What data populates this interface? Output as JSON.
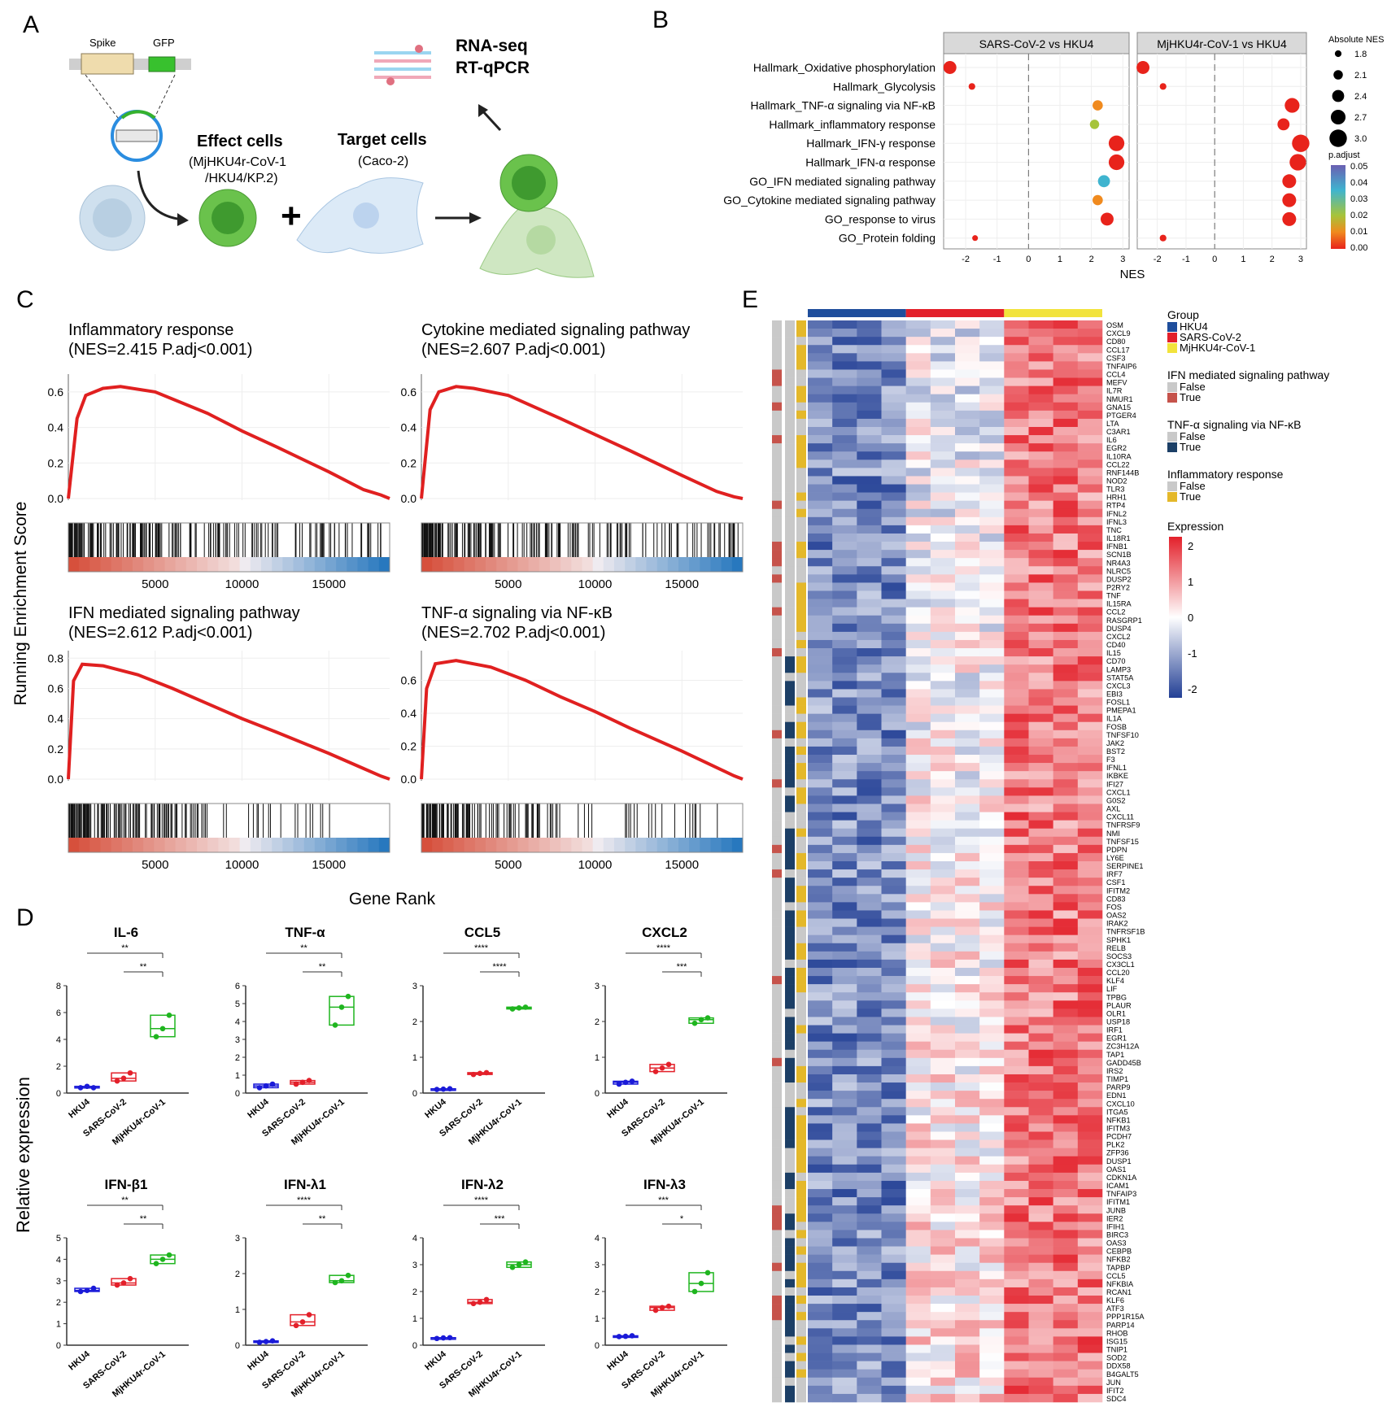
{
  "panel_labels": {
    "a": "A",
    "b": "B",
    "c": "C",
    "d": "D",
    "e": "E"
  },
  "panelA": {
    "spike": "Spike",
    "gfp": "GFP",
    "rnaseq": "RNA-seq",
    "rtqpcr": "RT-qPCR",
    "effect_title": "Effect cells",
    "effect_sub1": "(MjHKU4r-CoV-1",
    "effect_sub2": "/HKU4/KP.2)",
    "target_title": "Target cells",
    "target_sub": "(Caco-2)",
    "plus": "+"
  },
  "panelB": {
    "facet_titles": [
      "SARS-CoV-2 vs HKU4",
      "MjHKU4r-CoV-1 vs HKU4"
    ],
    "xlabel": "NES",
    "xticks": [
      -2,
      -1,
      0,
      1,
      2,
      3
    ],
    "size_legend_title": "Absolute NES",
    "size_legend_values": [
      "1.8",
      "2.1",
      "2.4",
      "2.7",
      "3.0"
    ],
    "color_legend_title": "p.adjust",
    "color_legend_values": [
      "0.05",
      "0.04",
      "0.03",
      "0.02",
      "0.01",
      "0.00"
    ],
    "colors": {
      "low": "#e8231b",
      "mid1": "#f08a1e",
      "mid2": "#a6c43a",
      "mid3": "#3fb4cf",
      "high": "#6a5fb2"
    }
  },
  "panelC": {
    "ylabel": "Running Enrichment Score",
    "xlabel": "Gene Rank",
    "xticks": [
      "5000",
      "10000",
      "15000"
    ],
    "panels": [
      {
        "title": "Inflammatory response",
        "stats": "(NES=2.415  P.adj<0.001)",
        "yticks": [
          "0.0",
          "0.2",
          "0.4",
          "0.6"
        ]
      },
      {
        "title": "Cytokine mediated signaling pathway",
        "stats": "(NES=2.607  P.adj<0.001)",
        "yticks": [
          "0.0",
          "0.2",
          "0.4",
          "0.6"
        ]
      },
      {
        "title": "IFN mediated signaling pathway",
        "stats": "(NES=2.612  P.adj<0.001)",
        "yticks": [
          "0.0",
          "0.2",
          "0.4",
          "0.6",
          "0.8"
        ]
      },
      {
        "title": "TNF-α signaling via NF-κB",
        "stats": "(NES=2.702  P.adj<0.001)",
        "yticks": [
          "0.0",
          "0.2",
          "0.4",
          "0.6"
        ]
      }
    ],
    "line_color": "#e02020"
  },
  "panelD": {
    "ylabel": "Relative expression",
    "groups": [
      "HKU4",
      "SARS-CoV-2",
      "MjHKU4r-CoV-1"
    ],
    "colors": [
      "#1a1ad8",
      "#e3202a",
      "#1fb51f"
    ]
  },
  "panelE": {
    "legend_group_title": "Group",
    "group_names": [
      "HKU4",
      "SARS-CoV-2",
      "MjHKU4r-CoV-1"
    ],
    "group_colors": [
      "#1f4e9c",
      "#e3202a",
      "#f2e33c"
    ],
    "legend_ifn_title": "IFN mediated signaling pathway",
    "legend_tnf_title": "TNF-α signaling via NF-κB",
    "legend_inf_title": "Inflammatory response",
    "false_label": "False",
    "true_label": "True",
    "ann_true_colors": [
      "#c6534b",
      "#1c3f66",
      "#e4b82a"
    ],
    "ann_false_color": "#c9c9c9",
    "expression_title": "Expression",
    "expression_ticks": [
      "2",
      "1",
      "0",
      "-1",
      "-2"
    ],
    "genes": [
      "OSM",
      "CXCL9",
      "CD80",
      "CCL17",
      "CSF3",
      "TNFAIP6",
      "CCL4",
      "MEFV",
      "IL7R",
      "NMUR1",
      "GNA15",
      "PTGER4",
      "LTA",
      "C3AR1",
      "IL6",
      "EGR2",
      "IL10RA",
      "CCL22",
      "RNF144B",
      "NOD2",
      "TLR3",
      "HRH1",
      "RTP4",
      "IFNL2",
      "IFNL3",
      "TNC",
      "IL18R1",
      "IFNB1",
      "SCN1B",
      "NR4A3",
      "NLRC5",
      "DUSP2",
      "P2RY2",
      "TNF",
      "IL15RA",
      "CCL2",
      "RASGRP1",
      "DUSP4",
      "CXCL2",
      "CD40",
      "IL15",
      "CD70",
      "LAMP3",
      "STAT5A",
      "CXCL3",
      "EBI3",
      "FOSL1",
      "PMEPA1",
      "IL1A",
      "FOSB",
      "TNFSF10",
      "JAK2",
      "BST2",
      "F3",
      "IFNL1",
      "IKBKE",
      "IFI27",
      "CXCL1",
      "G0S2",
      "AXL",
      "CXCL11",
      "TNFRSF9",
      "NMI",
      "TNFSF15",
      "PDPN",
      "LY6E",
      "SERPINE1",
      "IRF7",
      "CSF1",
      "IFITM2",
      "CD83",
      "FOS",
      "OAS2",
      "IRAK2",
      "TNFRSF1B",
      "SPHK1",
      "RELB",
      "SOCS3",
      "CX3CL1",
      "CCL20",
      "KLF4",
      "LIF",
      "TPBG",
      "PLAUR",
      "OLR1",
      "USP18",
      "IRF1",
      "EGR1",
      "ZC3H12A",
      "TAP1",
      "GADD45B",
      "IRS2",
      "TIMP1",
      "PARP9",
      "EDN1",
      "CXCL10",
      "ITGA5",
      "NFKB1",
      "IFITM3",
      "PCDH7",
      "PLK2",
      "ZFP36",
      "DUSP1",
      "OAS1",
      "CDKN1A",
      "ICAM1",
      "TNFAIP3",
      "IFITM1",
      "JUNB",
      "IER2",
      "IFIH1",
      "BIRC3",
      "OAS3",
      "CEBPB",
      "NFKB2",
      "TAPBP",
      "CCL5",
      "NFKBIA",
      "RCAN1",
      "KLF6",
      "ATF3",
      "PPP1R15A",
      "PARP14",
      "RHOB",
      "ISG15",
      "TNIP1",
      "SOD2",
      "DDX58",
      "B4GALT5",
      "JUN",
      "IFIT2",
      "SDC4"
    ]
  },
  "chart_data": [
    {
      "type": "scatter",
      "title": "B",
      "facets": [
        "SARS-CoV-2 vs HKU4",
        "MjHKU4r-CoV-1 vs HKU4"
      ],
      "xlabel": "NES",
      "xlim": [
        -2.7,
        3.2
      ],
      "categories": [
        "Hallmark_Oxidative phosphorylation",
        "Hallmark_Glycolysis",
        "Hallmark_TNF-α signaling via NF-κB",
        "Hallmark_inflammatory response",
        "Hallmark_IFN-γ response",
        "Hallmark_IFN-α response",
        "GO_IFN mediated signaling pathway",
        "GO_Cytokine mediated signaling pathway",
        "GO_response to virus",
        "GO_Protein folding"
      ],
      "series": [
        {
          "name": "SARS-CoV-2 vs HKU4",
          "nes": [
            -2.5,
            -1.8,
            2.2,
            2.1,
            2.8,
            2.8,
            2.4,
            2.2,
            2.5,
            -1.7
          ],
          "p_adjust": [
            0.0,
            0.0,
            0.01,
            0.02,
            0.0,
            0.0,
            0.035,
            0.01,
            0.0,
            0.0
          ]
        },
        {
          "name": "MjHKU4r-CoV-1 vs HKU4",
          "nes": [
            -2.5,
            -1.8,
            2.7,
            2.4,
            3.0,
            2.9,
            2.6,
            2.6,
            2.6,
            -1.8
          ],
          "p_adjust": [
            0.0,
            0.0,
            0.0,
            0.0,
            0.0,
            0.0,
            0.0,
            0.0,
            0.0,
            0.0
          ]
        }
      ]
    },
    {
      "type": "line",
      "title": "C",
      "xlabel": "Gene Rank",
      "ylabel": "Running Enrichment Score",
      "xlim": [
        0,
        18500
      ],
      "series": [
        {
          "name": "Inflammatory response",
          "x": [
            0,
            500,
            1000,
            2000,
            3000,
            5000,
            8000,
            10000,
            12000,
            15000,
            17000,
            18000,
            18500
          ],
          "y": [
            0,
            0.45,
            0.58,
            0.62,
            0.63,
            0.6,
            0.48,
            0.38,
            0.29,
            0.15,
            0.05,
            0.02,
            0.0
          ]
        },
        {
          "name": "Cytokine mediated signaling pathway",
          "x": [
            0,
            500,
            1000,
            2000,
            3000,
            5000,
            8000,
            10000,
            12000,
            15000,
            17000,
            18000,
            18500
          ],
          "y": [
            0,
            0.5,
            0.6,
            0.63,
            0.62,
            0.58,
            0.45,
            0.36,
            0.27,
            0.13,
            0.04,
            0.01,
            0.0
          ]
        },
        {
          "name": "IFN mediated signaling pathway",
          "x": [
            0,
            300,
            800,
            2000,
            4000,
            6000,
            8000,
            10000,
            12000,
            15000,
            17000,
            18000,
            18500
          ],
          "y": [
            0,
            0.65,
            0.76,
            0.75,
            0.69,
            0.6,
            0.5,
            0.4,
            0.31,
            0.17,
            0.07,
            0.02,
            0.0
          ]
        },
        {
          "name": "TNF-α signaling via NF-κB",
          "x": [
            0,
            300,
            800,
            2000,
            4000,
            6000,
            8000,
            10000,
            12000,
            15000,
            17000,
            18000,
            18500
          ],
          "y": [
            0,
            0.55,
            0.7,
            0.72,
            0.68,
            0.6,
            0.5,
            0.41,
            0.31,
            0.17,
            0.07,
            0.02,
            0.0
          ]
        }
      ]
    },
    {
      "type": "bar",
      "title": "D",
      "ylabel": "Relative expression",
      "categories": [
        "HKU4",
        "SARS-CoV-2",
        "MjHKU4r-CoV-1"
      ],
      "plots": [
        {
          "name": "IL-6",
          "ylim": [
            0,
            8
          ],
          "yticks": [
            0,
            2,
            4,
            6,
            8
          ],
          "points": [
            [
              0.4,
              0.5,
              0.4
            ],
            [
              0.9,
              1.1,
              1.5
            ],
            [
              4.2,
              4.8,
              5.8
            ]
          ],
          "sig": [
            "**",
            "**"
          ]
        },
        {
          "name": "TNF-α",
          "ylim": [
            0,
            6
          ],
          "yticks": [
            0,
            1,
            2,
            3,
            4,
            5,
            6
          ],
          "points": [
            [
              0.3,
              0.4,
              0.5
            ],
            [
              0.5,
              0.6,
              0.7
            ],
            [
              3.8,
              4.8,
              5.4
            ]
          ],
          "sig": [
            "**",
            "**"
          ]
        },
        {
          "name": "CCL5",
          "ylim": [
            0,
            3
          ],
          "yticks": [
            0,
            1,
            2,
            3
          ],
          "points": [
            [
              0.1,
              0.11,
              0.12
            ],
            [
              0.52,
              0.55,
              0.57
            ],
            [
              2.35,
              2.38,
              2.4
            ]
          ],
          "sig": [
            "****",
            "****"
          ]
        },
        {
          "name": "CXCL2",
          "ylim": [
            0,
            3
          ],
          "yticks": [
            0,
            1,
            2,
            3
          ],
          "points": [
            [
              0.25,
              0.3,
              0.33
            ],
            [
              0.6,
              0.7,
              0.8
            ],
            [
              1.95,
              2.05,
              2.1
            ]
          ],
          "sig": [
            "****",
            "***"
          ]
        },
        {
          "name": "IFN-β1",
          "ylim": [
            0,
            5
          ],
          "yticks": [
            0,
            1,
            2,
            3,
            4,
            5
          ],
          "points": [
            [
              2.5,
              2.55,
              2.65
            ],
            [
              2.8,
              2.9,
              3.1
            ],
            [
              3.8,
              4.0,
              4.2
            ]
          ],
          "sig": [
            "**",
            "**"
          ]
        },
        {
          "name": "IFN-λ1",
          "ylim": [
            0,
            3
          ],
          "yticks": [
            0,
            1,
            2,
            3
          ],
          "points": [
            [
              0.08,
              0.1,
              0.12
            ],
            [
              0.55,
              0.65,
              0.85
            ],
            [
              1.75,
              1.8,
              1.95
            ]
          ],
          "sig": [
            "****",
            "**"
          ]
        },
        {
          "name": "IFN-λ2",
          "ylim": [
            0,
            4
          ],
          "yticks": [
            0,
            1,
            2,
            3,
            4
          ],
          "points": [
            [
              0.25,
              0.27,
              0.28
            ],
            [
              1.55,
              1.6,
              1.7
            ],
            [
              2.9,
              3.0,
              3.1
            ]
          ],
          "sig": [
            "****",
            "***"
          ]
        },
        {
          "name": "IFN-λ3",
          "ylim": [
            0,
            4
          ],
          "yticks": [
            0,
            1,
            2,
            3,
            4
          ],
          "points": [
            [
              0.32,
              0.33,
              0.35
            ],
            [
              1.3,
              1.4,
              1.45
            ],
            [
              2.0,
              2.3,
              2.7
            ]
          ],
          "sig": [
            "***",
            "*"
          ]
        }
      ]
    },
    {
      "type": "heatmap",
      "title": "E",
      "columns_per_group": 4,
      "value_range": [
        -2,
        2
      ]
    }
  ]
}
